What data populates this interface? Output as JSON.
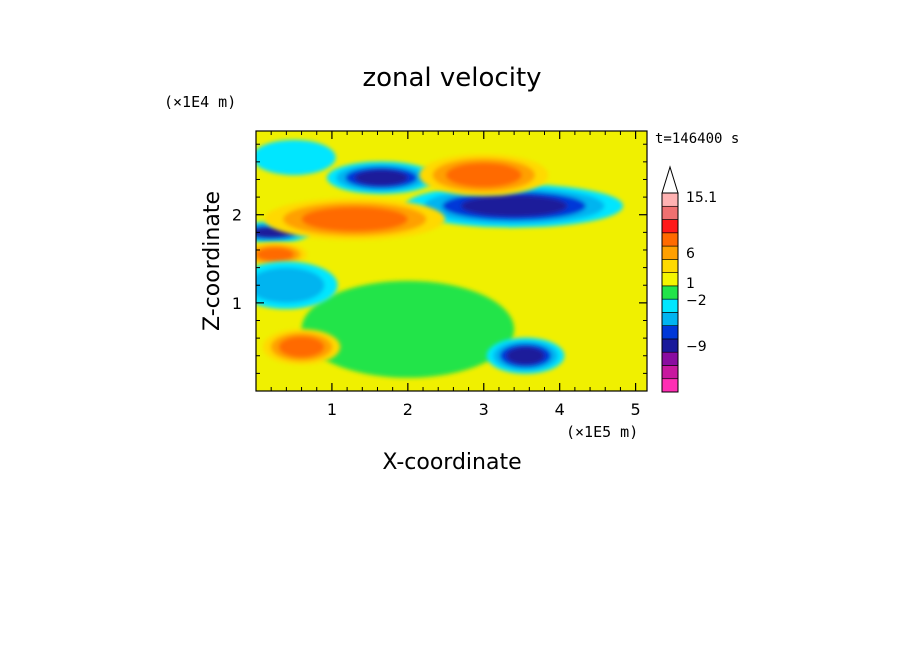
{
  "chart_data": {
    "type": "heatmap",
    "title": "zonal velocity",
    "xlabel": "X-coordinate",
    "ylabel": "Z-coordinate",
    "x_unit": "(×1E5 m)",
    "y_unit": "(×1E4 m)",
    "time_label": "t=146400 s",
    "xlim": [
      0,
      5.15
    ],
    "ylim": [
      0,
      2.95
    ],
    "x_ticks": [
      1,
      2,
      3,
      4,
      5
    ],
    "y_ticks": [
      1,
      2
    ],
    "x_tick_labels": [
      "1",
      "2",
      "3",
      "4",
      "5"
    ],
    "y_tick_labels": [
      "1",
      "2"
    ],
    "colorbar": {
      "colors": [
        "#ff2fb4",
        "#c8189f",
        "#8a0ca0",
        "#1a1a9a",
        "#0038d8",
        "#00b4f0",
        "#00e6ff",
        "#22e44a",
        "#f5f500",
        "#ffd900",
        "#ffa000",
        "#ff6a00",
        "#ff1a1a",
        "#f07070",
        "#ffb2b2"
      ],
      "labels": [
        "15.1",
        "6",
        "1",
        "−2",
        "−9"
      ],
      "extend_top_color": "#ffffff"
    },
    "background_color": "#f0f000",
    "features": [
      {
        "x": 3.4,
        "z": 2.1,
        "rx": 0.7,
        "rz": 0.12,
        "level": -10
      },
      {
        "x": 1.65,
        "z": 2.42,
        "rx": 0.35,
        "rz": 0.09,
        "level": -10
      },
      {
        "x": 0.2,
        "z": 1.8,
        "rx": 0.25,
        "rz": 0.06,
        "level": -10
      },
      {
        "x": 3.0,
        "z": 2.45,
        "rx": 0.5,
        "rz": 0.14,
        "level": 4
      },
      {
        "x": 1.3,
        "z": 1.95,
        "rx": 0.7,
        "rz": 0.14,
        "level": 4
      },
      {
        "x": 0.25,
        "z": 1.55,
        "rx": 0.25,
        "rz": 0.08,
        "level": 4
      },
      {
        "x": 2.0,
        "z": 0.7,
        "rx": 1.4,
        "rz": 0.55,
        "level": 0
      },
      {
        "x": 0.4,
        "z": 1.2,
        "rx": 0.5,
        "rz": 0.2,
        "level": -3
      },
      {
        "x": 0.5,
        "z": 2.65,
        "rx": 0.55,
        "rz": 0.2,
        "level": -1
      },
      {
        "x": 3.55,
        "z": 0.4,
        "rx": 0.25,
        "rz": 0.1,
        "level": -10
      },
      {
        "x": 0.6,
        "z": 0.5,
        "rx": 0.3,
        "rz": 0.12,
        "level": 4
      }
    ]
  }
}
